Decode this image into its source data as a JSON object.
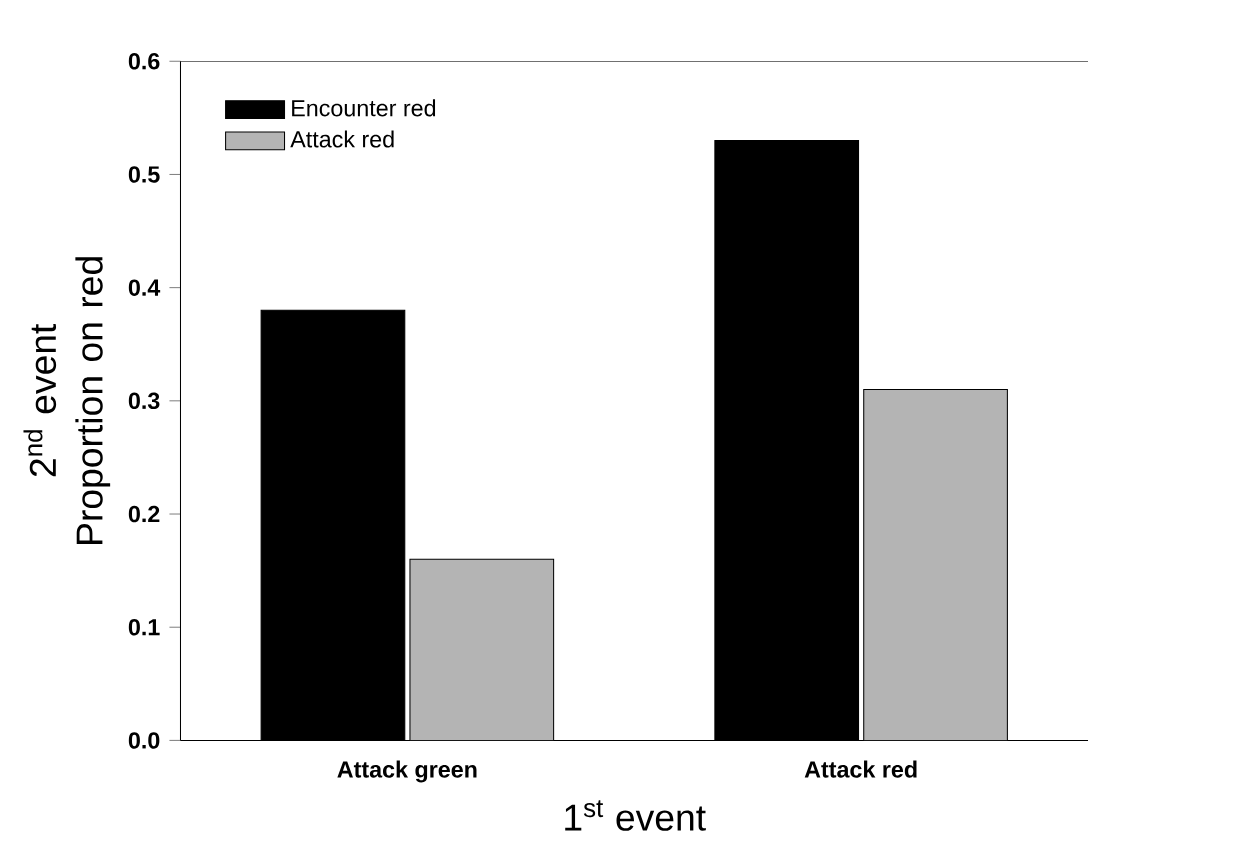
{
  "chart_data": {
    "type": "bar",
    "xlabel": "1$^{st}$ event",
    "ylabel": "2$^{nd}$ event Proportion on red",
    "categories": [
      "Attack green",
      "Attack red"
    ],
    "series": [
      {
        "name": "Encounter red",
        "color": "#000000",
        "values": [
          0.38,
          0.53
        ]
      },
      {
        "name": "Attack red",
        "color": "#b4b4b4",
        "values": [
          0.16,
          0.31
        ]
      }
    ],
    "ylim": [
      0,
      0.6
    ],
    "yticks": [
      {
        "value": 0,
        "label": "0.0"
      },
      {
        "value": 0.1,
        "label": "0.1"
      },
      {
        "value": 0.2,
        "label": "0.2"
      },
      {
        "value": 0.3,
        "label": "0.3"
      },
      {
        "value": 0.4,
        "label": "0.4"
      },
      {
        "value": 0.5,
        "label": "0.5"
      },
      {
        "value": 0.6,
        "label": "0.6"
      }
    ],
    "legend": "top left",
    "grid": false
  }
}
